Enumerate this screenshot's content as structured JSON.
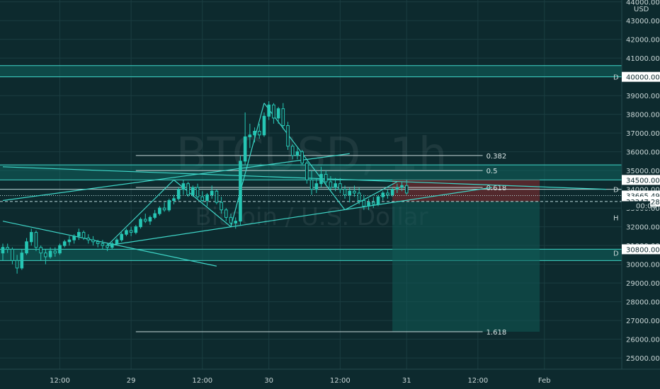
{
  "currency": "USD",
  "watermark": {
    "symbol": "BTCUSD, 1h",
    "description": "Bitcoin / U.S. Dollar"
  },
  "price_labels": [
    {
      "text": "40000.00",
      "value": 40000
    },
    {
      "text": "34500.00",
      "value": 34500
    },
    {
      "text": "33665.49",
      "value": 33665.49
    },
    {
      "text": "33347.28",
      "value": 33347.28
    },
    {
      "text": "30800.00",
      "value": 30800
    }
  ],
  "countdown": "00:06",
  "zone_letters": [
    "D",
    "D",
    "D",
    "H"
  ],
  "colors": {
    "background": "#0d2a2e",
    "up_candle": "#26c6b4",
    "down_candle": "#26c6b4",
    "lines": "#3fd6c8",
    "zone_fill": "#0f6f68",
    "stop_zone": "#6b2a2e",
    "target_zone": "#115a55"
  },
  "chart_data": {
    "type": "candlestick",
    "symbol": "BTCUSD",
    "interval": "1h",
    "ylim": [
      24400,
      44100
    ],
    "x_range": [
      0,
      127
    ],
    "y_ticks": [
      25000,
      26000,
      27000,
      28000,
      29000,
      30000,
      31000,
      32000,
      33000,
      34000,
      35000,
      36000,
      37000,
      38000,
      39000,
      40000,
      41000,
      42000,
      43000,
      44000
    ],
    "y_tick_labels": [
      "25000.00",
      "26000.00",
      "27000.00",
      "28000.00",
      "29000.00",
      "30000.00",
      "31000.00",
      "32000.00",
      "33000.00",
      "34000.00",
      "35000.00",
      "36000.00",
      "37000.00",
      "38000.00",
      "39000.00",
      "40000.00",
      "41000.00",
      "42000.00",
      "43000.00",
      "44000.00"
    ],
    "x_ticks": [
      {
        "label": "12:00",
        "x": 12
      },
      {
        "label": "29",
        "x": 27
      },
      {
        "label": "12:00",
        "x": 42
      },
      {
        "label": "30",
        "x": 56
      },
      {
        "label": "12:00",
        "x": 71
      },
      {
        "label": "31",
        "x": 85
      },
      {
        "label": "12:00",
        "x": 100
      },
      {
        "label": "Feb",
        "x": 114
      }
    ],
    "candles": [
      {
        "x": 0,
        "o": 30600,
        "h": 31100,
        "l": 30200,
        "c": 30900
      },
      {
        "x": 1,
        "o": 30900,
        "h": 31100,
        "l": 30600,
        "c": 30800
      },
      {
        "x": 2,
        "o": 30800,
        "h": 30900,
        "l": 30000,
        "c": 30200
      },
      {
        "x": 3,
        "o": 30200,
        "h": 30500,
        "l": 29500,
        "c": 29800
      },
      {
        "x": 4,
        "o": 29800,
        "h": 30800,
        "l": 29700,
        "c": 30600
      },
      {
        "x": 5,
        "o": 30600,
        "h": 31400,
        "l": 30500,
        "c": 31200
      },
      {
        "x": 6,
        "o": 31200,
        "h": 31900,
        "l": 31000,
        "c": 31700
      },
      {
        "x": 7,
        "o": 31700,
        "h": 31800,
        "l": 30700,
        "c": 30900
      },
      {
        "x": 8,
        "o": 30900,
        "h": 31000,
        "l": 30200,
        "c": 30600
      },
      {
        "x": 9,
        "o": 30600,
        "h": 30800,
        "l": 30000,
        "c": 30400
      },
      {
        "x": 10,
        "o": 30400,
        "h": 30900,
        "l": 30300,
        "c": 30700
      },
      {
        "x": 11,
        "o": 30700,
        "h": 30900,
        "l": 30400,
        "c": 30600
      },
      {
        "x": 12,
        "o": 30600,
        "h": 31100,
        "l": 30500,
        "c": 31000
      },
      {
        "x": 13,
        "o": 31000,
        "h": 31300,
        "l": 30900,
        "c": 31200
      },
      {
        "x": 14,
        "o": 31200,
        "h": 31500,
        "l": 31000,
        "c": 31300
      },
      {
        "x": 15,
        "o": 31300,
        "h": 31600,
        "l": 31100,
        "c": 31500
      },
      {
        "x": 16,
        "o": 31500,
        "h": 31900,
        "l": 31300,
        "c": 31700
      },
      {
        "x": 17,
        "o": 31700,
        "h": 31800,
        "l": 31300,
        "c": 31400
      },
      {
        "x": 18,
        "o": 31400,
        "h": 31600,
        "l": 31100,
        "c": 31300
      },
      {
        "x": 19,
        "o": 31300,
        "h": 31500,
        "l": 31000,
        "c": 31200
      },
      {
        "x": 20,
        "o": 31200,
        "h": 31300,
        "l": 30900,
        "c": 31100
      },
      {
        "x": 21,
        "o": 31100,
        "h": 31300,
        "l": 30800,
        "c": 31000
      },
      {
        "x": 22,
        "o": 31000,
        "h": 31100,
        "l": 30700,
        "c": 30900
      },
      {
        "x": 23,
        "o": 30900,
        "h": 31200,
        "l": 30800,
        "c": 31100
      },
      {
        "x": 24,
        "o": 31100,
        "h": 31400,
        "l": 31000,
        "c": 31300
      },
      {
        "x": 25,
        "o": 31300,
        "h": 31700,
        "l": 31200,
        "c": 31600
      },
      {
        "x": 26,
        "o": 31600,
        "h": 31900,
        "l": 31500,
        "c": 31800
      },
      {
        "x": 27,
        "o": 31800,
        "h": 32000,
        "l": 31500,
        "c": 31700
      },
      {
        "x": 28,
        "o": 31700,
        "h": 32100,
        "l": 31600,
        "c": 32000
      },
      {
        "x": 29,
        "o": 32000,
        "h": 32500,
        "l": 31900,
        "c": 32400
      },
      {
        "x": 30,
        "o": 32400,
        "h": 32700,
        "l": 32200,
        "c": 32300
      },
      {
        "x": 31,
        "o": 32300,
        "h": 32600,
        "l": 32100,
        "c": 32500
      },
      {
        "x": 32,
        "o": 32500,
        "h": 32900,
        "l": 32400,
        "c": 32700
      },
      {
        "x": 33,
        "o": 32700,
        "h": 33100,
        "l": 32600,
        "c": 33000
      },
      {
        "x": 34,
        "o": 33000,
        "h": 33300,
        "l": 32800,
        "c": 32900
      },
      {
        "x": 35,
        "o": 32900,
        "h": 33500,
        "l": 32800,
        "c": 33400
      },
      {
        "x": 36,
        "o": 33400,
        "h": 33700,
        "l": 33200,
        "c": 33500
      },
      {
        "x": 37,
        "o": 33500,
        "h": 34100,
        "l": 33400,
        "c": 34000
      },
      {
        "x": 38,
        "o": 34000,
        "h": 34500,
        "l": 33700,
        "c": 34300
      },
      {
        "x": 39,
        "o": 34300,
        "h": 34400,
        "l": 33600,
        "c": 33700
      },
      {
        "x": 40,
        "o": 33700,
        "h": 34200,
        "l": 33600,
        "c": 34100
      },
      {
        "x": 41,
        "o": 34100,
        "h": 34300,
        "l": 33500,
        "c": 33600
      },
      {
        "x": 42,
        "o": 33600,
        "h": 33900,
        "l": 33300,
        "c": 33400
      },
      {
        "x": 43,
        "o": 33400,
        "h": 33800,
        "l": 33100,
        "c": 33700
      },
      {
        "x": 44,
        "o": 33700,
        "h": 34200,
        "l": 33500,
        "c": 33900
      },
      {
        "x": 45,
        "o": 33900,
        "h": 34000,
        "l": 33200,
        "c": 33300
      },
      {
        "x": 46,
        "o": 33300,
        "h": 33600,
        "l": 32700,
        "c": 32900
      },
      {
        "x": 47,
        "o": 32900,
        "h": 33000,
        "l": 32300,
        "c": 32500
      },
      {
        "x": 48,
        "o": 32500,
        "h": 32700,
        "l": 32100,
        "c": 32200
      },
      {
        "x": 49,
        "o": 32200,
        "h": 32500,
        "l": 31900,
        "c": 32300
      },
      {
        "x": 50,
        "o": 32300,
        "h": 35800,
        "l": 32100,
        "c": 35500
      },
      {
        "x": 51,
        "o": 35500,
        "h": 38100,
        "l": 35300,
        "c": 36800
      },
      {
        "x": 52,
        "o": 36800,
        "h": 37500,
        "l": 36200,
        "c": 36900
      },
      {
        "x": 53,
        "o": 36900,
        "h": 37300,
        "l": 36500,
        "c": 37100
      },
      {
        "x": 54,
        "o": 37100,
        "h": 37500,
        "l": 36700,
        "c": 36900
      },
      {
        "x": 55,
        "o": 36900,
        "h": 38100,
        "l": 36800,
        "c": 37900
      },
      {
        "x": 56,
        "o": 37900,
        "h": 38700,
        "l": 37700,
        "c": 38500
      },
      {
        "x": 57,
        "o": 38500,
        "h": 38600,
        "l": 37500,
        "c": 37800
      },
      {
        "x": 58,
        "o": 37800,
        "h": 38400,
        "l": 37500,
        "c": 38300
      },
      {
        "x": 59,
        "o": 38300,
        "h": 38600,
        "l": 37200,
        "c": 37400
      },
      {
        "x": 60,
        "o": 37400,
        "h": 37600,
        "l": 36100,
        "c": 36300
      },
      {
        "x": 61,
        "o": 36300,
        "h": 36400,
        "l": 35600,
        "c": 35800
      },
      {
        "x": 62,
        "o": 35800,
        "h": 36200,
        "l": 35600,
        "c": 36000
      },
      {
        "x": 63,
        "o": 36000,
        "h": 36100,
        "l": 35300,
        "c": 35400
      },
      {
        "x": 64,
        "o": 35400,
        "h": 35500,
        "l": 34300,
        "c": 34500
      },
      {
        "x": 65,
        "o": 34500,
        "h": 35000,
        "l": 33700,
        "c": 34000
      },
      {
        "x": 66,
        "o": 34000,
        "h": 34600,
        "l": 33800,
        "c": 34300
      },
      {
        "x": 67,
        "o": 34300,
        "h": 35200,
        "l": 34100,
        "c": 34800
      },
      {
        "x": 68,
        "o": 34800,
        "h": 35000,
        "l": 34200,
        "c": 34400
      },
      {
        "x": 69,
        "o": 34400,
        "h": 34700,
        "l": 33900,
        "c": 34100
      },
      {
        "x": 70,
        "o": 34100,
        "h": 34600,
        "l": 33900,
        "c": 34300
      },
      {
        "x": 71,
        "o": 34300,
        "h": 34600,
        "l": 33800,
        "c": 34000
      },
      {
        "x": 72,
        "o": 34000,
        "h": 34200,
        "l": 33500,
        "c": 33700
      },
      {
        "x": 73,
        "o": 33700,
        "h": 34100,
        "l": 33300,
        "c": 33900
      },
      {
        "x": 74,
        "o": 33900,
        "h": 34200,
        "l": 33600,
        "c": 33800
      },
      {
        "x": 75,
        "o": 33800,
        "h": 34100,
        "l": 33200,
        "c": 33400
      },
      {
        "x": 76,
        "o": 33400,
        "h": 33700,
        "l": 32900,
        "c": 33100
      },
      {
        "x": 77,
        "o": 33100,
        "h": 33500,
        "l": 32900,
        "c": 33300
      },
      {
        "x": 78,
        "o": 33300,
        "h": 33600,
        "l": 33000,
        "c": 33200
      },
      {
        "x": 79,
        "o": 33200,
        "h": 33700,
        "l": 33100,
        "c": 33600
      },
      {
        "x": 80,
        "o": 33600,
        "h": 33900,
        "l": 33400,
        "c": 33800
      },
      {
        "x": 81,
        "o": 33800,
        "h": 34000,
        "l": 33500,
        "c": 33700
      },
      {
        "x": 82,
        "o": 33700,
        "h": 34100,
        "l": 33600,
        "c": 34000
      },
      {
        "x": 83,
        "o": 34000,
        "h": 34300,
        "l": 33800,
        "c": 34100
      },
      {
        "x": 84,
        "o": 34100,
        "h": 34400,
        "l": 33900,
        "c": 34200
      },
      {
        "x": 85,
        "o": 34200,
        "h": 34500,
        "l": 33700,
        "c": 33800
      }
    ],
    "zones": [
      {
        "kind": "resistance",
        "y1": 40000,
        "y2": 40600,
        "label": "D"
      },
      {
        "kind": "resistance",
        "y1": 34500,
        "y2": 35300,
        "label": "D"
      },
      {
        "kind": "support",
        "y1": 30200,
        "y2": 30800,
        "label": "D"
      }
    ],
    "horizontal_lines": [
      {
        "y": 34000,
        "style": "solid"
      },
      {
        "y": 33665.49,
        "style": "dotted"
      },
      {
        "y": 33347.28,
        "style": "dashed"
      }
    ],
    "fibonacci": [
      {
        "level": "0.382",
        "price": 35800,
        "x1": 28,
        "x2": 101
      },
      {
        "level": "0.5",
        "price": 35000,
        "x1": 28,
        "x2": 101
      },
      {
        "level": "0.618",
        "price": 34100,
        "x1": 28,
        "x2": 101
      },
      {
        "level": "1.618",
        "price": 26400,
        "x1": 28,
        "x2": 101
      }
    ],
    "trendlines": [
      {
        "x1": 0,
        "y1": 32300,
        "x2": 45,
        "y2": 29900
      },
      {
        "x1": 0,
        "y1": 33400,
        "x2": 73,
        "y2": 35900
      },
      {
        "x1": 0,
        "y1": 35200,
        "x2": 127,
        "y2": 34000
      },
      {
        "x1": 22,
        "y1": 31000,
        "x2": 103,
        "y2": 34100
      },
      {
        "x1": 22,
        "y1": 31000,
        "x2": 36,
        "y2": 34500
      },
      {
        "x1": 36,
        "y1": 34500,
        "x2": 48,
        "y2": 32000
      },
      {
        "x1": 48,
        "y1": 32000,
        "x2": 55,
        "y2": 38600
      },
      {
        "x1": 55,
        "y1": 38600,
        "x2": 72,
        "y2": 32900
      },
      {
        "x1": 72,
        "y1": 32900,
        "x2": 83,
        "y2": 34400
      }
    ],
    "position": {
      "x_start": 82,
      "x_end": 113,
      "entry": 33347.28,
      "stop_top": 34500,
      "target": 26400
    }
  }
}
